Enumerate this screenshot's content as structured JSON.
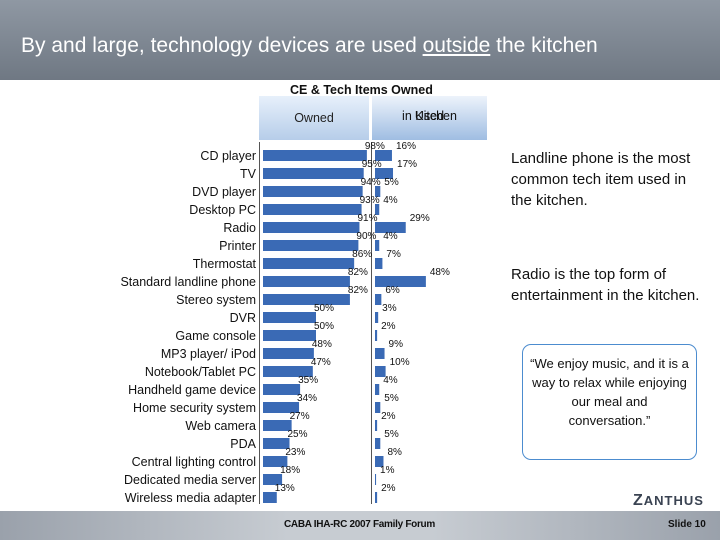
{
  "header": {
    "title_before": "By and large, technology devices are used ",
    "title_underlined": "outside",
    "title_after": " the kitchen"
  },
  "chart_data": {
    "type": "bar",
    "title": "CE & Tech Items Owned",
    "series": [
      {
        "name": "Owned",
        "values": [
          98,
          95,
          94,
          93,
          91,
          90,
          86,
          82,
          82,
          50,
          50,
          48,
          47,
          35,
          34,
          27,
          25,
          23,
          18,
          13
        ]
      },
      {
        "name": "Used in Kitchen",
        "values": [
          16,
          17,
          5,
          4,
          29,
          4,
          7,
          48,
          6,
          3,
          2,
          9,
          10,
          4,
          5,
          2,
          5,
          8,
          1,
          2
        ]
      }
    ],
    "categories": [
      "CD player",
      "TV",
      "DVD player",
      "Desktop PC",
      "Radio",
      "Printer",
      "Thermostat",
      "Standard landline phone",
      "Stereo system",
      "DVR",
      "Game console",
      "MP3 player/ iPod",
      "Notebook/Tablet PC",
      "Handheld game device",
      "Home security system",
      "Web camera",
      "PDA",
      "Central lighting control",
      "Dedicated media server",
      "Wireless media adapter"
    ],
    "column_headers": {
      "owned": "Owned",
      "kitchen_line1": "Used",
      "kitchen_line2": "in Kitchen"
    },
    "value_suffix": "%",
    "colors": {
      "owned": "#3a6ab5",
      "kitchen": "#3a6ab5"
    },
    "orientation": "horizontal"
  },
  "callouts": {
    "first": "Landline phone is the most common tech item used in the kitchen.",
    "second": "Radio is the top form of entertainment in the kitchen.",
    "quote": "“We enjoy music, and it is a way to relax while enjoying our meal and conversation.”"
  },
  "logo": {
    "initial": "Z",
    "rest": "ANTHUS"
  },
  "footer": {
    "event": "CABA IHA-RC 2007 Family Forum",
    "slide": "Slide 10"
  }
}
